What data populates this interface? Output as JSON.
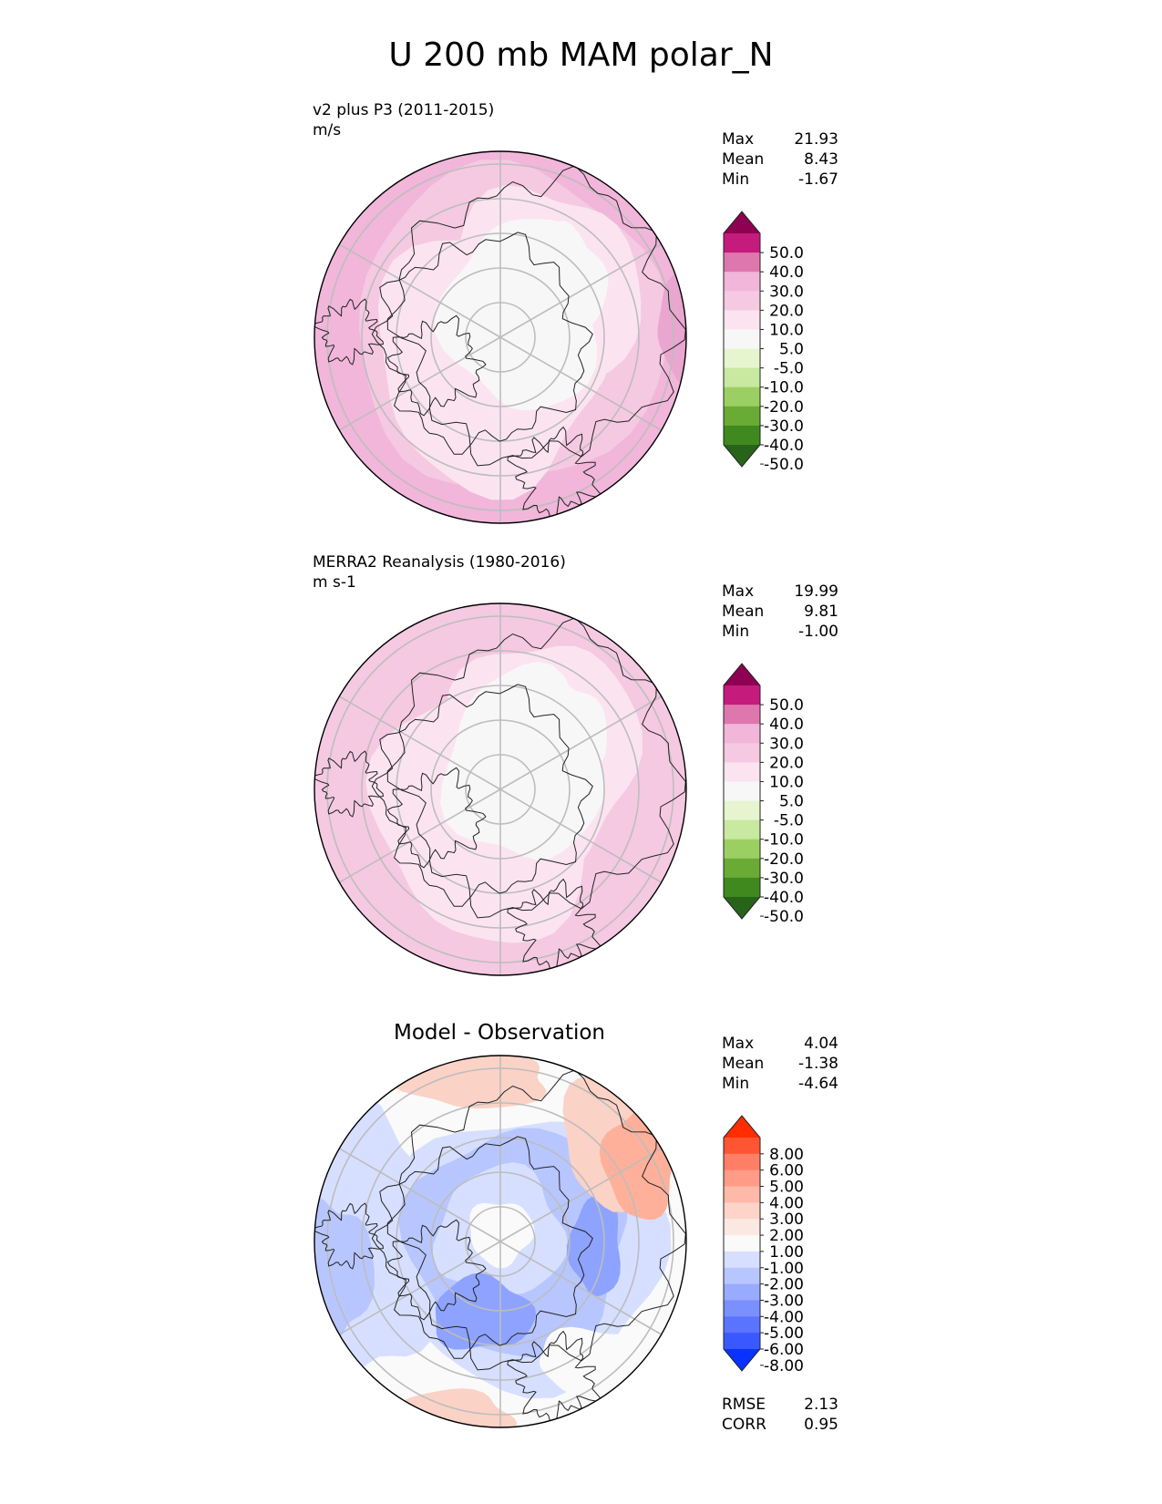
{
  "figure": {
    "title": "U 200 mb MAM polar_N"
  },
  "chart_data": [
    {
      "type": "heatmap",
      "projection": "north polar stereographic",
      "title": "v2 plus P3 (2011-2015)",
      "units": "m/s",
      "stats": {
        "max": "21.93",
        "mean": "8.43",
        "min": "-1.67"
      },
      "colorbar": {
        "levels": [
          "50.0",
          "40.0",
          "30.0",
          "20.0",
          "10.0",
          "5.0",
          "-5.0",
          "-10.0",
          "-20.0",
          "-30.0",
          "-40.0",
          "-50.0"
        ],
        "colors": [
          "#8e0152",
          "#c51b7d",
          "#de77ae",
          "#f1b6da",
          "#f5c9e2",
          "#fbe4f0",
          "#f7f7f7",
          "#e6f5d0",
          "#c7e9a0",
          "#9ccf63",
          "#6aab35",
          "#3f891f",
          "#276419"
        ]
      },
      "field_colors": {
        "high": "#f1b6da",
        "mid": "#f5c9e2",
        "low": "#fbe4f0",
        "core": "#f7f7f7"
      }
    },
    {
      "type": "heatmap",
      "projection": "north polar stereographic",
      "title": "MERRA2 Reanalysis (1980-2016)",
      "units": "m s-1",
      "stats": {
        "max": "19.99",
        "mean": "9.81",
        "min": "-1.00"
      },
      "colorbar": {
        "levels": [
          "50.0",
          "40.0",
          "30.0",
          "20.0",
          "10.0",
          "5.0",
          "-5.0",
          "-10.0",
          "-20.0",
          "-30.0",
          "-40.0",
          "-50.0"
        ],
        "colors": [
          "#8e0152",
          "#c51b7d",
          "#de77ae",
          "#f1b6da",
          "#f5c9e2",
          "#fbe4f0",
          "#f7f7f7",
          "#e6f5d0",
          "#c7e9a0",
          "#9ccf63",
          "#6aab35",
          "#3f891f",
          "#276419"
        ]
      },
      "field_colors": {
        "high": "#f5c9e2",
        "mid": "#f5c9e2",
        "low": "#fbe4f0",
        "core": "#f7f7f7"
      }
    },
    {
      "type": "heatmap",
      "projection": "north polar stereographic",
      "title": "Model - Observation",
      "stats": {
        "max": "4.04",
        "mean": "-1.38",
        "min": "-4.64"
      },
      "colorbar": {
        "levels": [
          "8.00",
          "6.00",
          "5.00",
          "4.00",
          "3.00",
          "2.00",
          "1.00",
          "-1.00",
          "-2.00",
          "-3.00",
          "-4.00",
          "-5.00",
          "-6.00",
          "-8.00"
        ],
        "colors": [
          "#ff2d00",
          "#ff5533",
          "#ff7f66",
          "#ff9c88",
          "#ffb9a8",
          "#fdd4c8",
          "#fbe8e2",
          "#fafafa",
          "#d6dfff",
          "#b8c6ff",
          "#98abff",
          "#7a90ff",
          "#5a74ff",
          "#3a58ff",
          "#0a32ff"
        ]
      },
      "metrics": {
        "rmse": "2.13",
        "corr": "0.95"
      },
      "field_colors": {
        "pos": "#fbd2c6",
        "pos2": "#ffb09a",
        "neg1": "#d6dfff",
        "neg2": "#b8c6ff",
        "neg3": "#8ea3ff",
        "neutral": "#fafafa"
      }
    }
  ],
  "labels": {
    "max": "Max",
    "mean": "Mean",
    "min": "Min",
    "rmse": "RMSE",
    "corr": "CORR"
  }
}
